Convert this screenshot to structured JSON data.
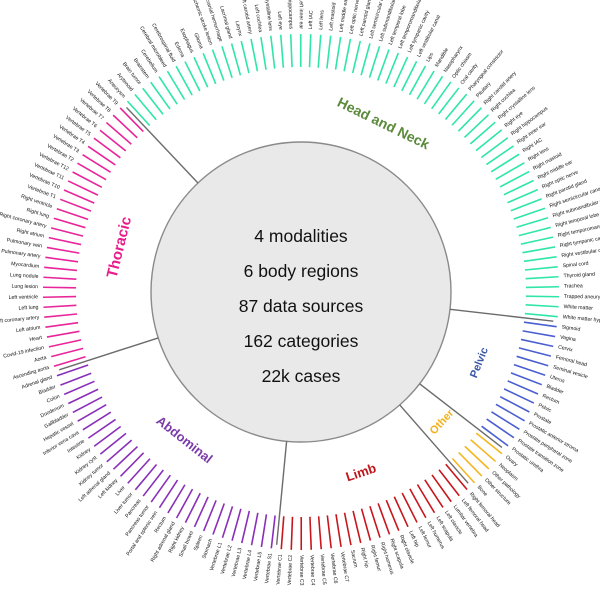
{
  "center_stats": [
    "4 modalities",
    "6 body regions",
    "87 data sources",
    "162 categories",
    "22k cases"
  ],
  "regions": [
    {
      "name": "Head and Neck",
      "color": "#5a8a3a",
      "tick_color": "#2ee6a6"
    },
    {
      "name": "Pelvic",
      "color": "#3b57a8",
      "tick_color": "#4a5fd0"
    },
    {
      "name": "Other",
      "color": "#f2b21c",
      "tick_color": "#f5b623"
    },
    {
      "name": "Limb",
      "color": "#c0151b",
      "tick_color": "#c8161c"
    },
    {
      "name": "Abdominal",
      "color": "#7b3aa8",
      "tick_color": "#8a2fb8"
    },
    {
      "name": "Thoracic",
      "color": "#ea1b8c",
      "tick_color": "#e8259a"
    }
  ],
  "segments": [
    {
      "region": "Head and Neck",
      "labels": [
        "White matter hyperintensi",
        "White matter",
        "Trapped aneurysm",
        "Trachea",
        "Thyroid gland",
        "Spinal cord",
        "Right vestibular canal",
        "Right tympanic cavity",
        "Right temporomandibular joint",
        "Right temporal lobe",
        "Right submandibular gland",
        "Right semicircular canal",
        "Right parotid gland",
        "Right optic nerve",
        "Right middle ear",
        "Right mastoid",
        "Right lens",
        "Right IAC",
        "Right inner ear",
        "Right hippocampus",
        "Right eye",
        "Right crystalline lens",
        "Right cochlea",
        "Right carotid artery",
        "Pituitary",
        "Pharyngeal constrictor",
        "Oral cavity",
        "Optic chiasm",
        "Nasopharynx",
        "Mandible",
        "Lips",
        "Left vestibular canal",
        "Left tympanic cavity",
        "Left temporomandibular joint",
        "Left temporal lobe",
        "Left submandibular gland",
        "Left semicircular canal",
        "Left parotid gland",
        "Left optic nerve",
        "Left middle ear",
        "Left mastoid",
        "Left lens",
        "Left IAC",
        "Left inner ear",
        "Left hippocampus",
        "Left eye",
        "Left crystalline lens",
        "Left cochlea",
        "Left carotid artery",
        "Larynx",
        "Lacrimal gland",
        "Intracranial hemorrhage",
        "Ischemic stroke lesion",
        "Glioma",
        "Esophagus",
        "Edema",
        "Cerebrospinal fluid",
        "Cerebral microbleed",
        "Cerebellum",
        "Brainstem",
        "Brain tumor",
        "Arytenoid",
        "Aneurysm"
      ]
    },
    {
      "region": "Thoracic",
      "labels": [
        "Vertebrae T9",
        "Vertebrae T8",
        "Vertebrae T7",
        "Vertebrae T6",
        "Vertebrae T5",
        "Vertebrae T4",
        "Vertebrae T3",
        "Vertebrae T2",
        "Vertebrae T12",
        "Vertebrae T11",
        "Vertebrae T10",
        "Vertebrae T1",
        "Right ventricle",
        "Right lung",
        "Right coronary artery",
        "Right atrium",
        "Pulmonary vein",
        "Pulmonary artery",
        "Myocardium",
        "Lung nodule",
        "Lung lesion",
        "Left ventricle",
        "Left lung",
        "Left coronary artery",
        "Left atrium",
        "Heart",
        "Covid-19 infection",
        "Aorta",
        "Ascending aorta"
      ]
    },
    {
      "region": "Abdominal",
      "labels": [
        "Adrenal gland",
        "Bladder",
        "Colon",
        "Duodenum",
        "Gallbladder",
        "Hepatic vessel",
        "Inferior vena cava",
        "Intestine",
        "Kidney",
        "Kidney cyst",
        "Kidney tumor",
        "Left adrenal gland",
        "Left kidney",
        "Liver",
        "Liver tumor",
        "Pancreas",
        "Pancreas tumor",
        "Portal and splenic vein",
        "Rectum",
        "Right adrenal gland",
        "Right kidney",
        "Small bowel",
        "Spleen",
        "Stomach",
        "Vertebrae L1",
        "Vertebrae L2",
        "Vertebrae L3",
        "Vertebrae L4",
        "Vertebrae L5",
        "Vertebrae S1"
      ]
    },
    {
      "region": "Limb",
      "labels": [
        "Vertebrae C1",
        "Vertebrae C2",
        "Vertebrae C3",
        "Vertebrae C4",
        "Vertebrae C5",
        "Vertebrae C6",
        "Vertebrae C7",
        "Sacrum",
        "Right hip",
        "Right femur",
        "Right humerus",
        "Right scapula",
        "Right clavicle",
        "Left hip",
        "Left femur",
        "Left humerus",
        "Left scapula",
        "Left clavicle",
        "Lumbar vertebra",
        "Left femoral head",
        "Right femoral head"
      ]
    },
    {
      "region": "Other",
      "labels": [
        "Bone",
        "Other structure",
        "Other pathology",
        "Neoplasm",
        "Ovary"
      ]
    },
    {
      "region": "Pelvic",
      "labels": [
        "Prostatic urethra",
        "Prostate transition zone",
        "Prostate peripheral zone",
        "Prostatic anterior stroma",
        "Prostate",
        "Pelvic",
        "Rectum",
        "Bladder",
        "Uterus",
        "Seminal vesicle",
        "Femoral head",
        "Cervix",
        "Vagina",
        "Sigmoid"
      ]
    }
  ]
}
